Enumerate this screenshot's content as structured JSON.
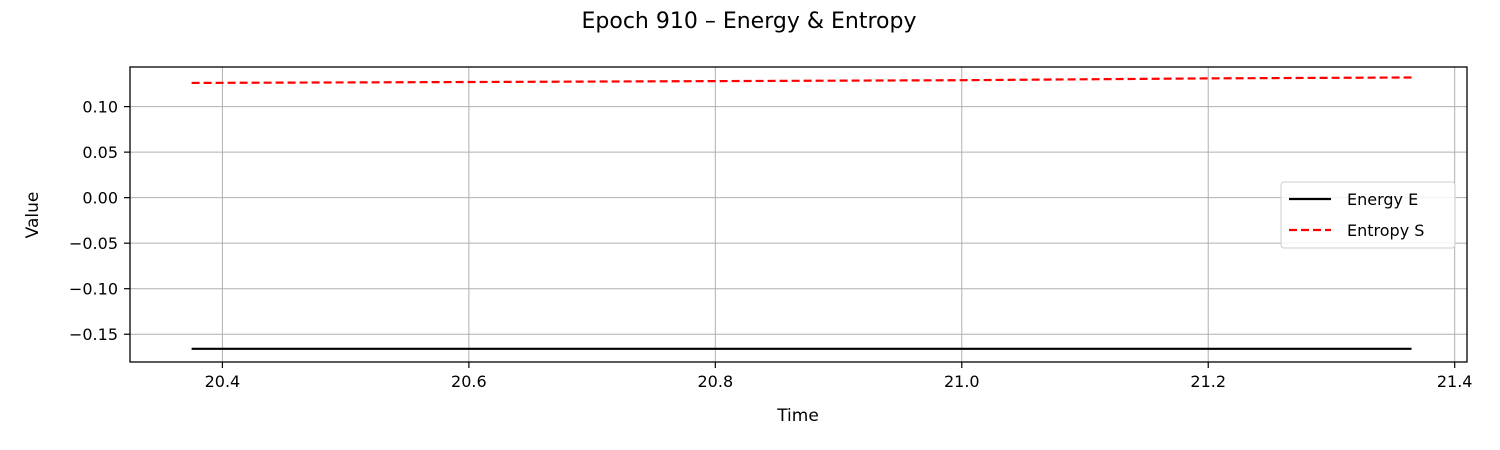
{
  "chart_data": {
    "type": "line",
    "title": "Epoch 910 – Energy & Entropy",
    "xlabel": "Time",
    "ylabel": "Value",
    "xlim": [
      20.325,
      21.41
    ],
    "ylim": [
      -0.1805,
      0.1435
    ],
    "xticks": [
      20.4,
      20.6,
      20.8,
      21.0,
      21.2,
      21.4
    ],
    "xtick_labels": [
      "20.4",
      "20.6",
      "20.8",
      "21.0",
      "21.2",
      "21.4"
    ],
    "yticks": [
      0.1,
      0.05,
      0.0,
      -0.05,
      -0.1,
      -0.15
    ],
    "ytick_labels": [
      "0.10",
      "0.05",
      "0.00",
      "−0.05",
      "−0.10",
      "−0.15"
    ],
    "grid": true,
    "legend_position": "center-right",
    "series": [
      {
        "name": "Energy E",
        "color": "#000000",
        "dash": "solid",
        "x": [
          20.375,
          21.365
        ],
        "y": [
          -0.166,
          -0.166
        ]
      },
      {
        "name": "Entropy S",
        "color": "#ff0000",
        "dash": "dashed",
        "x": [
          20.375,
          20.6,
          20.8,
          21.0,
          21.2,
          21.365
        ],
        "y": [
          0.126,
          0.127,
          0.128,
          0.129,
          0.131,
          0.132
        ]
      }
    ]
  }
}
